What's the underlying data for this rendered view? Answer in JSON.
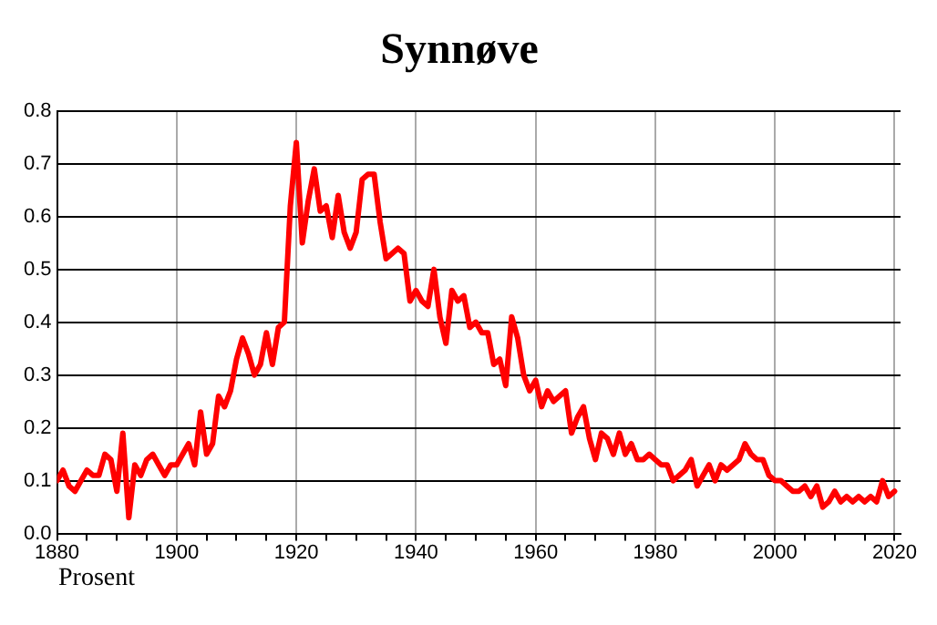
{
  "chart_data": {
    "type": "line",
    "title": "Synnøve",
    "annotations": [
      "Prosent"
    ],
    "x": [
      1880,
      1881,
      1882,
      1883,
      1884,
      1885,
      1886,
      1887,
      1888,
      1889,
      1890,
      1891,
      1892,
      1893,
      1894,
      1895,
      1896,
      1897,
      1898,
      1899,
      1900,
      1901,
      1902,
      1903,
      1904,
      1905,
      1906,
      1907,
      1908,
      1909,
      1910,
      1911,
      1912,
      1913,
      1914,
      1915,
      1916,
      1917,
      1918,
      1919,
      1920,
      1921,
      1922,
      1923,
      1924,
      1925,
      1926,
      1927,
      1928,
      1929,
      1930,
      1931,
      1932,
      1933,
      1934,
      1935,
      1936,
      1937,
      1938,
      1939,
      1940,
      1941,
      1942,
      1943,
      1944,
      1945,
      1946,
      1947,
      1948,
      1949,
      1950,
      1951,
      1952,
      1953,
      1954,
      1955,
      1956,
      1957,
      1958,
      1959,
      1960,
      1961,
      1962,
      1963,
      1964,
      1965,
      1966,
      1967,
      1968,
      1969,
      1970,
      1971,
      1972,
      1973,
      1974,
      1975,
      1976,
      1977,
      1978,
      1979,
      1980,
      1981,
      1982,
      1983,
      1984,
      1985,
      1986,
      1987,
      1988,
      1989,
      1990,
      1991,
      1992,
      1993,
      1994,
      1995,
      1996,
      1997,
      1998,
      1999,
      2000,
      2001,
      2002,
      2003,
      2004,
      2005,
      2006,
      2007,
      2008,
      2009,
      2010,
      2011,
      2012,
      2013,
      2014,
      2015,
      2016,
      2017,
      2018,
      2019,
      2020
    ],
    "series": [
      {
        "color": "#ff0000",
        "values": [
          0.1,
          0.12,
          0.09,
          0.08,
          0.1,
          0.12,
          0.11,
          0.11,
          0.15,
          0.14,
          0.08,
          0.19,
          0.03,
          0.13,
          0.11,
          0.14,
          0.15,
          0.13,
          0.11,
          0.13,
          0.13,
          0.15,
          0.17,
          0.13,
          0.23,
          0.15,
          0.17,
          0.26,
          0.24,
          0.27,
          0.33,
          0.37,
          0.34,
          0.3,
          0.32,
          0.38,
          0.32,
          0.39,
          0.4,
          0.62,
          0.74,
          0.55,
          0.63,
          0.69,
          0.61,
          0.62,
          0.56,
          0.64,
          0.57,
          0.54,
          0.57,
          0.67,
          0.68,
          0.68,
          0.59,
          0.52,
          0.53,
          0.54,
          0.53,
          0.44,
          0.46,
          0.44,
          0.43,
          0.5,
          0.41,
          0.36,
          0.46,
          0.44,
          0.45,
          0.39,
          0.4,
          0.38,
          0.38,
          0.32,
          0.33,
          0.28,
          0.41,
          0.37,
          0.3,
          0.27,
          0.29,
          0.24,
          0.27,
          0.25,
          0.26,
          0.27,
          0.19,
          0.22,
          0.24,
          0.18,
          0.14,
          0.19,
          0.18,
          0.15,
          0.19,
          0.15,
          0.17,
          0.14,
          0.14,
          0.15,
          0.14,
          0.13,
          0.13,
          0.1,
          0.11,
          0.12,
          0.14,
          0.09,
          0.11,
          0.13,
          0.1,
          0.13,
          0.12,
          0.13,
          0.14,
          0.17,
          0.15,
          0.14,
          0.14,
          0.11,
          0.1,
          0.1,
          0.09,
          0.08,
          0.08,
          0.09,
          0.07,
          0.09,
          0.05,
          0.06,
          0.08,
          0.06,
          0.07,
          0.06,
          0.07,
          0.06,
          0.07,
          0.06,
          0.1,
          0.07,
          0.08
        ]
      }
    ],
    "xlim": [
      1880,
      2021
    ],
    "xticks": [
      1880,
      {
        "value": 1885,
        "label": null
      },
      {
        "value": 1890,
        "label": null
      },
      {
        "value": 1895,
        "label": null
      },
      1900,
      {
        "value": 1905,
        "label": null
      },
      {
        "value": 1910,
        "label": null
      },
      {
        "value": 1915,
        "label": null
      },
      1920,
      {
        "value": 1925,
        "label": null
      },
      {
        "value": 1930,
        "label": null
      },
      {
        "value": 1935,
        "label": null
      },
      1940,
      {
        "value": 1945,
        "label": null
      },
      {
        "value": 1950,
        "label": null
      },
      {
        "value": 1955,
        "label": null
      },
      1960,
      {
        "value": 1965,
        "label": null
      },
      {
        "value": 1970,
        "label": null
      },
      {
        "value": 1975,
        "label": null
      },
      1980,
      {
        "value": 1985,
        "label": null
      },
      {
        "value": 1990,
        "label": null
      },
      {
        "value": 1995,
        "label": null
      },
      2000,
      {
        "value": 2005,
        "label": null
      },
      {
        "value": 2010,
        "label": null
      },
      {
        "value": 2015,
        "label": null
      },
      2020
    ],
    "ylim": [
      0,
      0.8
    ],
    "yticks": [
      {
        "value": 0,
        "label": "0.0"
      },
      {
        "value": 0.1,
        "label": "0.1"
      },
      {
        "value": 0.2,
        "label": "0.2"
      },
      {
        "value": 0.3,
        "label": "0.3"
      },
      {
        "value": 0.4,
        "label": "0.4"
      },
      {
        "value": 0.5,
        "label": "0.5"
      },
      {
        "value": 0.6,
        "label": "0.6"
      },
      {
        "value": 0.7,
        "label": "0.7"
      },
      {
        "value": 0.8,
        "label": "0.8"
      }
    ],
    "grid": true,
    "legend": false,
    "marker": "none",
    "line_style": "solid"
  }
}
